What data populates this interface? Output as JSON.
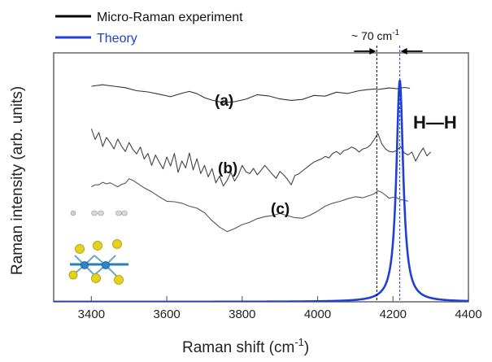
{
  "chart_data": {
    "type": "line",
    "xlabel_main": "Raman shift (cm",
    "xlabel_sup": "-1",
    "xlabel_end": ")",
    "ylabel": "Raman intensity (arb. units)",
    "xlim": [
      3300,
      4400
    ],
    "xticks": [
      3400,
      3600,
      3800,
      4000,
      4200,
      4400
    ],
    "legend": [
      {
        "label": "Micro-Raman experiment",
        "color": "#000000"
      },
      {
        "label": "Theory",
        "color": "#1f3fd6"
      }
    ],
    "annotations": {
      "curve_a": "(a)",
      "curve_b": "(b)",
      "curve_c": "(c)",
      "peak": "H—H",
      "shift_main": "~ 70 cm",
      "shift_sup": "-1"
    },
    "experiment_peak": 4157,
    "theory_peak": 4218,
    "series": [
      {
        "name": "(a)",
        "color": "#333333",
        "x": [
          3400,
          3430,
          3460,
          3490,
          3520,
          3550,
          3580,
          3610,
          3640,
          3660,
          3680,
          3700,
          3720,
          3750,
          3780,
          3810,
          3840,
          3870,
          3900,
          3930,
          3960,
          3990,
          4020,
          4050,
          4080,
          4110,
          4130,
          4150,
          4160,
          4175,
          4190,
          4210,
          4230,
          4245
        ],
        "y": [
          0.866,
          0.872,
          0.866,
          0.86,
          0.848,
          0.843,
          0.834,
          0.824,
          0.838,
          0.845,
          0.836,
          0.82,
          0.81,
          0.8,
          0.804,
          0.814,
          0.832,
          0.827,
          0.815,
          0.809,
          0.813,
          0.829,
          0.826,
          0.842,
          0.837,
          0.848,
          0.852,
          0.855,
          0.853,
          0.856,
          0.859,
          0.856,
          0.861,
          0.858
        ]
      },
      {
        "name": "(b)",
        "color": "#444444",
        "x": [
          3400,
          3410,
          3420,
          3430,
          3440,
          3450,
          3460,
          3470,
          3480,
          3490,
          3500,
          3510,
          3520,
          3530,
          3540,
          3550,
          3560,
          3570,
          3580,
          3590,
          3600,
          3610,
          3620,
          3630,
          3640,
          3650,
          3660,
          3670,
          3680,
          3690,
          3700,
          3710,
          3720,
          3730,
          3740,
          3750,
          3760,
          3770,
          3780,
          3790,
          3800,
          3810,
          3820,
          3830,
          3840,
          3850,
          3860,
          3870,
          3880,
          3890,
          3900,
          3910,
          3920,
          3930,
          3940,
          3950,
          3960,
          3970,
          3980,
          3990,
          4000,
          4010,
          4020,
          4030,
          4040,
          4050,
          4060,
          4070,
          4080,
          4090,
          4100,
          4110,
          4120,
          4130,
          4140,
          4150,
          4160,
          4170,
          4180,
          4190,
          4200,
          4210,
          4220,
          4230,
          4240,
          4250,
          4260,
          4270,
          4280,
          4290,
          4300
        ],
        "y": [
          0.695,
          0.652,
          0.68,
          0.624,
          0.66,
          0.64,
          0.614,
          0.654,
          0.625,
          0.604,
          0.64,
          0.612,
          0.594,
          0.622,
          0.574,
          0.596,
          0.548,
          0.59,
          0.561,
          0.534,
          0.582,
          0.545,
          0.596,
          0.52,
          0.566,
          0.538,
          0.598,
          0.53,
          0.575,
          0.515,
          0.548,
          0.502,
          0.535,
          0.478,
          0.505,
          0.465,
          0.488,
          0.52,
          0.485,
          0.51,
          0.548,
          0.522,
          0.515,
          0.536,
          0.51,
          0.528,
          0.548,
          0.53,
          0.512,
          0.496,
          0.524,
          0.51,
          0.492,
          0.47,
          0.508,
          0.514,
          0.526,
          0.538,
          0.55,
          0.561,
          0.568,
          0.574,
          0.584,
          0.578,
          0.596,
          0.604,
          0.592,
          0.608,
          0.612,
          0.622,
          0.615,
          0.602,
          0.614,
          0.618,
          0.63,
          0.652,
          0.676,
          0.635,
          0.614,
          0.604,
          0.602,
          0.608,
          0.624,
          0.598,
          0.59,
          0.602,
          0.565,
          0.594,
          0.618,
          0.586,
          0.602
        ]
      },
      {
        "name": "(c)",
        "color": "#555555",
        "x": [
          3400,
          3410,
          3420,
          3430,
          3440,
          3450,
          3460,
          3470,
          3480,
          3490,
          3500,
          3510,
          3520,
          3540,
          3560,
          3580,
          3600,
          3620,
          3640,
          3660,
          3680,
          3700,
          3720,
          3740,
          3760,
          3780,
          3800,
          3820,
          3840,
          3860,
          3880,
          3900,
          3920,
          3940,
          3960,
          3980,
          4000,
          4020,
          4040,
          4060,
          4080,
          4100,
          4120,
          4140,
          4150,
          4160,
          4170,
          4180,
          4190,
          4200,
          4210,
          4220,
          4230,
          4240
        ],
        "y": [
          0.462,
          0.47,
          0.47,
          0.48,
          0.474,
          0.478,
          0.47,
          0.462,
          0.472,
          0.476,
          0.494,
          0.488,
          0.478,
          0.458,
          0.442,
          0.422,
          0.404,
          0.402,
          0.396,
          0.384,
          0.376,
          0.358,
          0.326,
          0.3,
          0.282,
          0.294,
          0.31,
          0.32,
          0.334,
          0.342,
          0.346,
          0.355,
          0.346,
          0.338,
          0.336,
          0.348,
          0.364,
          0.384,
          0.396,
          0.404,
          0.414,
          0.422,
          0.418,
          0.428,
          0.434,
          0.446,
          0.44,
          0.428,
          0.416,
          0.42,
          0.418,
          0.41,
          0.408,
          0.404
        ]
      }
    ],
    "theory": {
      "name": "Theory",
      "color": "#1f3fd6",
      "center": 4218,
      "hwhm": 11,
      "height": 0.89
    }
  }
}
